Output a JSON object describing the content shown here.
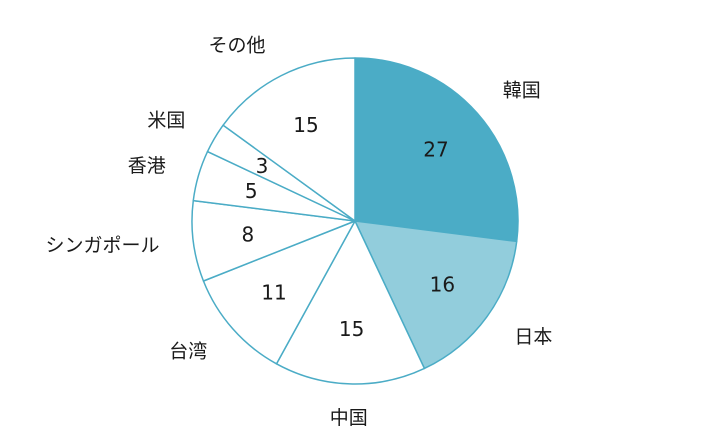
{
  "chart_data": {
    "type": "pie",
    "title": "",
    "slices": [
      {
        "label": "韓国",
        "value": 27,
        "color": "#4bacc6"
      },
      {
        "label": "日本",
        "value": 16,
        "color": "#92cddc"
      },
      {
        "label": "中国",
        "value": 15,
        "color": "#ffffff"
      },
      {
        "label": "台湾",
        "value": 11,
        "color": "#ffffff"
      },
      {
        "label": "シンガポール",
        "value": 8,
        "color": "#ffffff"
      },
      {
        "label": "香港",
        "value": 5,
        "color": "#ffffff"
      },
      {
        "label": "米国",
        "value": 3,
        "color": "#ffffff"
      },
      {
        "label": "その他",
        "value": 15,
        "color": "#ffffff"
      }
    ],
    "start": "12 o'clock",
    "direction": "clockwise",
    "border_color": "#4bacc6",
    "legend": "none"
  }
}
